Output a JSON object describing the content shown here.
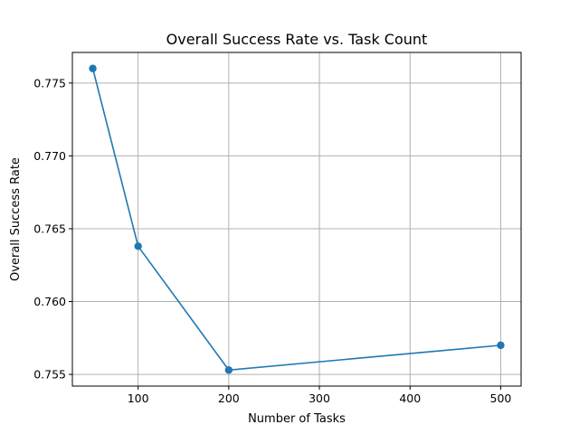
{
  "chart_data": {
    "type": "line",
    "title": "Overall Success Rate vs. Task Count",
    "xlabel": "Number of Tasks",
    "ylabel": "Overall Success Rate",
    "x": [
      50,
      100,
      200,
      500
    ],
    "series": [
      {
        "values": [
          0.776,
          0.7638,
          0.7553,
          0.757
        ],
        "color": "#1f77b4",
        "marker": "circle"
      }
    ],
    "xlim": [
      27.5,
      522.5
    ],
    "ylim": [
      0.7542,
      0.7771
    ],
    "xticks": [
      100,
      200,
      300,
      400,
      500
    ],
    "xtick_labels": [
      "100",
      "200",
      "300",
      "400",
      "500"
    ],
    "yticks": [
      0.755,
      0.76,
      0.765,
      0.77,
      0.775
    ],
    "ytick_labels": [
      "0.755",
      "0.760",
      "0.765",
      "0.770",
      "0.775"
    ],
    "grid": true,
    "legend": "none"
  }
}
